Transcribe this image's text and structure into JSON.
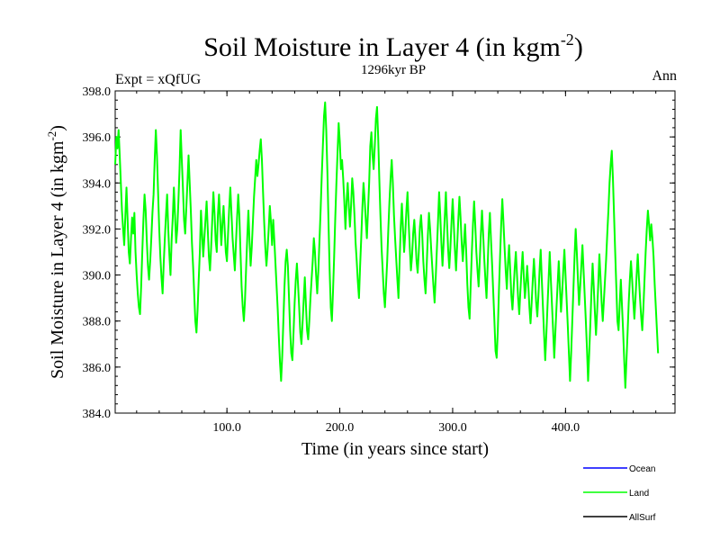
{
  "header": {
    "title_main": "Soil Moisture in Layer 4 (in kgm",
    "title_sup": "-2",
    "title_close": ")",
    "subtitle": "1296kyr BP",
    "left_label": "Expt = xQfUG",
    "right_label": "Ann"
  },
  "chart_data": {
    "type": "line",
    "title": "Soil Moisture in Layer 4 (in kgm-2)",
    "subtitle": "1296kyr BP",
    "xlabel": "Time (in years since start)",
    "ylabel_main": "Soil Moisture in Layer 4 (in kgm",
    "ylabel_sup": "-2",
    "ylabel_close": ")",
    "xlim": [
      1,
      497
    ],
    "ylim": [
      384.0,
      398.0
    ],
    "x_ticks": [
      100,
      200,
      300,
      400
    ],
    "x_tick_labels": [
      "100.0",
      "200.0",
      "300.0",
      "400.0"
    ],
    "y_ticks": [
      384,
      386,
      388,
      390,
      392,
      394,
      396,
      398
    ],
    "y_tick_labels": [
      "384.0",
      "386.0",
      "388.0",
      "390.0",
      "392.0",
      "394.0",
      "396.0",
      "398.0"
    ],
    "legend": [
      {
        "name": "Ocean",
        "color": "#0000ff"
      },
      {
        "name": "Land",
        "color": "#00ff00"
      },
      {
        "name": "AllSurf",
        "color": "#000000"
      }
    ],
    "series": [
      {
        "name": "Land",
        "color": "#00ff00",
        "x_start": 1,
        "x_step": 1,
        "values": [
          394.8,
          396.0,
          395.5,
          396.3,
          395.2,
          394.0,
          392.8,
          392.0,
          391.3,
          392.6,
          393.8,
          392.4,
          391.0,
          390.5,
          391.6,
          392.5,
          391.8,
          392.7,
          391.0,
          390.0,
          389.2,
          388.6,
          388.3,
          389.5,
          391.0,
          392.4,
          393.5,
          392.8,
          391.5,
          390.4,
          389.8,
          390.6,
          391.6,
          392.7,
          393.5,
          395.0,
          396.3,
          395.2,
          393.6,
          392.0,
          390.8,
          389.9,
          389.2,
          390.5,
          391.6,
          392.6,
          393.5,
          392.0,
          390.9,
          390.0,
          391.5,
          392.5,
          393.8,
          392.6,
          391.4,
          392.0,
          393.2,
          394.6,
          396.3,
          395.0,
          393.8,
          392.4,
          391.8,
          392.9,
          394.0,
          395.2,
          394.0,
          392.8,
          391.4,
          390.4,
          389.2,
          388.0,
          387.5,
          388.5,
          389.8,
          391.0,
          392.8,
          391.8,
          390.8,
          391.6,
          392.4,
          393.2,
          392.0,
          390.8,
          390.2,
          391.2,
          392.4,
          393.6,
          392.7,
          391.5,
          391.0,
          392.6,
          393.5,
          392.4,
          391.3,
          392.2,
          393.0,
          392.0,
          391.0,
          390.6,
          391.8,
          392.9,
          393.8,
          392.7,
          391.6,
          390.9,
          390.2,
          391.4,
          392.5,
          393.5,
          392.6,
          391.0,
          389.5,
          388.6,
          388.0,
          388.9,
          390.3,
          391.6,
          392.8,
          391.5,
          390.4,
          391.2,
          392.3,
          393.4,
          394.2,
          395.0,
          394.3,
          394.8,
          395.4,
          395.9,
          395.0,
          393.6,
          392.3,
          391.2,
          390.4,
          391.1,
          392.0,
          393.0,
          392.3,
          391.3,
          392.4,
          391.5,
          390.5,
          389.5,
          388.5,
          387.3,
          386.2,
          385.4,
          386.5,
          388.0,
          389.5,
          390.6,
          391.1,
          390.4,
          389.0,
          387.6,
          386.6,
          386.3,
          387.5,
          388.8,
          389.8,
          390.5,
          389.6,
          388.6,
          387.5,
          387.0,
          387.9,
          388.9,
          389.9,
          388.7,
          387.6,
          387.2,
          388.0,
          389.0,
          389.8,
          390.6,
          391.6,
          391.0,
          390.0,
          389.2,
          390.2,
          391.5,
          392.8,
          394.3,
          395.6,
          396.9,
          397.5,
          396.3,
          394.5,
          392.3,
          390.2,
          388.6,
          388.0,
          389.3,
          390.8,
          392.5,
          394.0,
          395.3,
          396.6,
          395.8,
          394.6,
          395.0,
          394.2,
          393.2,
          392.0,
          393.2,
          394.0,
          393.0,
          392.1,
          393.0,
          394.2,
          393.6,
          392.6,
          391.4,
          390.6,
          389.7,
          389.0,
          390.4,
          391.6,
          392.9,
          394.0,
          393.3,
          392.4,
          391.6,
          392.8,
          394.0,
          395.6,
          396.2,
          395.2,
          394.6,
          395.6,
          396.8,
          397.3,
          396.0,
          394.2,
          392.6,
          391.2,
          390.2,
          389.2,
          388.6,
          389.6,
          390.6,
          392.0,
          393.2,
          394.2,
          395.0,
          394.0,
          392.6,
          391.6,
          390.7,
          389.8,
          389.0,
          390.6,
          392.1,
          393.1,
          392.0,
          391.0,
          391.8,
          392.8,
          393.6,
          392.3,
          391.2,
          390.2,
          390.8,
          391.8,
          392.4,
          391.6,
          390.6,
          390.1,
          391.0,
          392.1,
          392.6,
          391.8,
          390.6,
          389.8,
          389.2,
          390.4,
          391.7,
          392.7,
          392.0,
          391.1,
          390.3,
          389.5,
          388.8,
          389.9,
          391.1,
          392.3,
          393.6,
          392.6,
          391.4,
          390.4,
          391.4,
          392.5,
          393.6,
          392.3,
          391.1,
          390.3,
          391.2,
          392.3,
          393.3,
          392.2,
          391.1,
          390.2,
          391.3,
          392.4,
          393.4,
          392.5,
          391.4,
          390.6,
          391.4,
          392.2,
          391.0,
          389.6,
          388.6,
          388.1,
          389.6,
          391.0,
          392.2,
          393.2,
          392.2,
          391.0,
          390.2,
          389.5,
          390.6,
          391.8,
          392.8,
          391.8,
          390.7,
          389.8,
          389.0,
          390.4,
          391.8,
          392.7,
          391.5,
          390.4,
          389.2,
          388.0,
          386.7,
          386.4,
          387.6,
          389.3,
          390.8,
          392.2,
          393.3,
          392.3,
          391.2,
          390.2,
          389.4,
          390.5,
          391.3,
          390.2,
          389.1,
          388.5,
          389.4,
          390.3,
          391.0,
          390.0,
          389.0,
          388.3,
          389.3,
          390.2,
          391.0,
          390.0,
          389.0,
          389.6,
          390.4,
          389.6,
          388.6,
          387.9,
          388.8,
          389.8,
          390.7,
          389.8,
          388.8,
          388.2,
          389.1,
          390.2,
          391.1,
          389.8,
          388.6,
          387.4,
          386.3,
          387.4,
          388.6,
          389.8,
          391.0,
          389.8,
          388.7,
          387.6,
          386.4,
          387.5,
          388.6,
          389.6,
          390.6,
          389.5,
          388.4,
          389.2,
          390.2,
          391.1,
          390.0,
          388.9,
          387.8,
          386.6,
          385.4,
          386.6,
          388.0,
          389.4,
          390.8,
          392.0,
          391.0,
          389.8,
          388.7,
          389.5,
          390.4,
          391.3,
          390.2,
          389.1,
          388.0,
          386.8,
          385.4,
          386.6,
          387.9,
          389.3,
          390.5,
          389.5,
          388.4,
          387.4,
          388.4,
          389.6,
          390.9,
          389.9,
          388.8,
          388.0,
          388.9,
          389.8,
          390.7,
          391.8,
          392.8,
          394.0,
          394.8,
          395.4,
          394.2,
          392.6,
          391.0,
          389.5,
          388.0,
          387.6,
          388.7,
          389.8,
          388.7,
          387.6,
          386.3,
          385.1,
          386.3,
          387.5,
          388.8,
          389.8,
          390.6,
          389.8,
          388.9,
          388.1,
          389.0,
          390.0,
          390.9,
          389.9,
          389.0,
          388.2,
          387.6,
          388.6,
          389.8,
          391.0,
          392.0,
          392.8,
          392.2,
          391.5,
          392.2,
          391.6,
          390.8,
          389.6,
          388.6,
          387.6,
          386.6
        ]
      }
    ]
  }
}
